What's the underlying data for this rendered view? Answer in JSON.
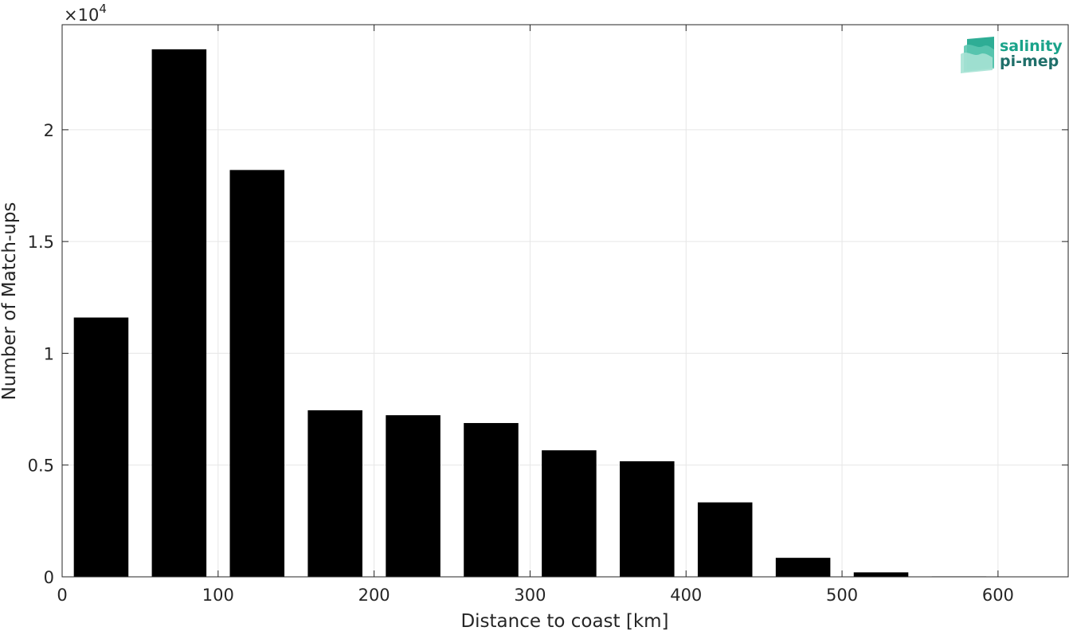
{
  "chart_data": {
    "type": "bar",
    "x": [
      25,
      75,
      125,
      175,
      225,
      275,
      325,
      375,
      425,
      475,
      525,
      575
    ],
    "values": [
      11600,
      23600,
      18200,
      7450,
      7230,
      6880,
      5660,
      5170,
      3330,
      850,
      200,
      20
    ],
    "bar_width": 35,
    "xlabel": "Distance to coast [km]",
    "ylabel": "Number of Match-ups",
    "xlim": [
      0,
      645
    ],
    "ylim": [
      0,
      24700
    ],
    "x_ticks": [
      0,
      100,
      200,
      300,
      400,
      500,
      600
    ],
    "x_tick_labels": [
      "0",
      "100",
      "200",
      "300",
      "400",
      "500",
      "600"
    ],
    "y_ticks": [
      0,
      5000,
      10000,
      15000,
      20000
    ],
    "y_tick_labels": [
      "0",
      "0.5",
      "1",
      "1.5",
      "2"
    ],
    "y_multiplier": {
      "base": "×10",
      "exponent": "4"
    },
    "grid": true,
    "bar_color": "#000000",
    "grid_color": "#e6e6e6",
    "axis_color": "#262626"
  },
  "logo": {
    "line1": "salinity",
    "line2": "pi-mep",
    "color1": "#1aa38a",
    "color2": "#1f6f6a"
  }
}
